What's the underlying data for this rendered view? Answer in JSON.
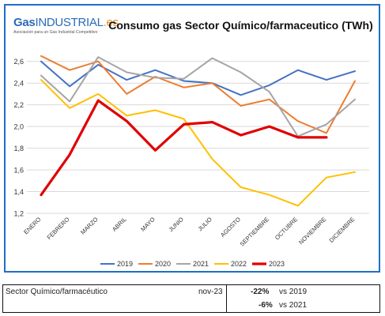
{
  "logo": {
    "brand_gas": "Gas",
    "brand_industrial": "INDUSTRIAL",
    "brand_es": ".es",
    "tagline": "Asociación para un Gas Industrial Competitivo"
  },
  "chart_data": {
    "type": "line",
    "title": "Consumo gas Sector Químico/farmaceutico (TWh)",
    "xlabel": "",
    "ylabel": "",
    "ylim": [
      1.2,
      2.7
    ],
    "yticks": [
      "1,2",
      "1,4",
      "1,6",
      "1,8",
      "2,0",
      "2,2",
      "2,4",
      "2,6"
    ],
    "grid": true,
    "legend_position": "bottom",
    "categories": [
      "ENERO",
      "FEBRERO",
      "MARZO",
      "ABRIL",
      "MAYO",
      "JUNIO",
      "JULIO",
      "AGOSTO",
      "SEPTIEMBRE",
      "OCTUBRE",
      "NOVIEMBRE",
      "DICIEMBRE"
    ],
    "series": [
      {
        "name": "2019",
        "color": "#4472c4",
        "values": [
          2.6,
          2.37,
          2.57,
          2.43,
          2.52,
          2.42,
          2.4,
          2.29,
          2.38,
          2.52,
          2.43,
          2.51
        ]
      },
      {
        "name": "2020",
        "color": "#ed7d31",
        "values": [
          2.65,
          2.52,
          2.6,
          2.3,
          2.46,
          2.36,
          2.4,
          2.19,
          2.25,
          2.05,
          1.94,
          2.42
        ]
      },
      {
        "name": "2021",
        "color": "#a5a5a5",
        "values": [
          2.47,
          2.23,
          2.64,
          2.5,
          2.45,
          2.44,
          2.63,
          2.5,
          2.32,
          1.91,
          2.02,
          2.25
        ]
      },
      {
        "name": "2022",
        "color": "#ffc000",
        "values": [
          2.43,
          2.17,
          2.3,
          2.1,
          2.15,
          2.07,
          1.7,
          1.44,
          1.37,
          1.27,
          1.53,
          1.58
        ]
      },
      {
        "name": "2023",
        "color": "#e00000",
        "bold": true,
        "values": [
          1.37,
          1.74,
          2.24,
          2.05,
          1.78,
          2.02,
          2.04,
          1.92,
          2.0,
          1.9,
          1.9,
          null
        ]
      }
    ]
  },
  "summary": {
    "sector": "Sector Químico/farmacéutico",
    "period": "nov-23",
    "row1_value": "-22%",
    "row1_text": "vs 2019",
    "row2_value": "-6%",
    "row2_text": "vs 2021"
  }
}
